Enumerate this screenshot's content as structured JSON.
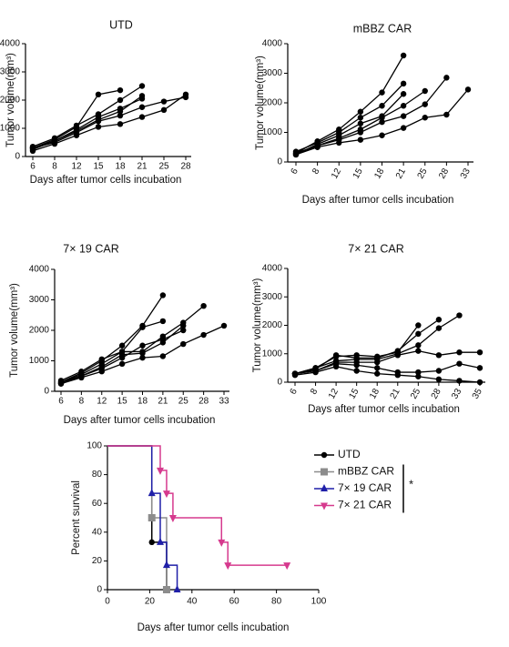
{
  "chart_data": [
    {
      "type": "line",
      "title": "UTD",
      "xlabel": "Days after tumor cells incubation",
      "ylabel": "Tumor volume(mm³)",
      "categories": [
        "6",
        "8",
        "12",
        "15",
        "18",
        "21",
        "25",
        "28"
      ],
      "ylim": [
        0,
        4000
      ],
      "yticks": [
        0,
        1000,
        2000,
        3000,
        4000
      ],
      "color": "#000000",
      "series": [
        {
          "values": [
            300,
            600,
            1050,
            2200,
            2350,
            null,
            null,
            null
          ]
        },
        {
          "values": [
            350,
            650,
            1100,
            1500,
            2000,
            2500,
            null,
            null
          ]
        },
        {
          "values": [
            250,
            550,
            900,
            1300,
            1600,
            2150,
            null,
            null
          ]
        },
        {
          "values": [
            300,
            500,
            850,
            1250,
            1450,
            1750,
            1950,
            2100
          ]
        },
        {
          "values": [
            200,
            450,
            750,
            1050,
            1150,
            1400,
            1650,
            2200
          ]
        },
        {
          "values": [
            300,
            550,
            950,
            1400,
            1700,
            2050,
            null,
            null
          ]
        }
      ]
    },
    {
      "type": "line",
      "title": "mBBZ CAR",
      "xlabel": "Days after tumor cells incubation",
      "ylabel": "Tumor volume(mm³)",
      "categories": [
        "6",
        "8",
        "12",
        "15",
        "18",
        "21",
        "25",
        "28",
        "33"
      ],
      "ylim": [
        0,
        4000
      ],
      "yticks": [
        0,
        1000,
        2000,
        3000,
        4000
      ],
      "color": "#000000",
      "series": [
        {
          "values": [
            300,
            700,
            1100,
            1700,
            2350,
            3600,
            null,
            null,
            null
          ]
        },
        {
          "values": [
            350,
            650,
            1000,
            1500,
            1900,
            2650,
            null,
            null,
            null
          ]
        },
        {
          "values": [
            250,
            600,
            900,
            1300,
            1550,
            2300,
            null,
            null,
            null
          ]
        },
        {
          "values": [
            300,
            550,
            800,
            1100,
            1500,
            1900,
            2400,
            null,
            null
          ]
        },
        {
          "values": [
            250,
            550,
            750,
            1000,
            1350,
            1550,
            1950,
            2850,
            null
          ]
        },
        {
          "values": [
            250,
            500,
            650,
            750,
            900,
            1150,
            1500,
            1600,
            2450
          ]
        }
      ]
    },
    {
      "type": "line",
      "title": "7× 19 CAR",
      "xlabel": "Days after tumor cells incubation",
      "ylabel": "Tumor volume(mm³)",
      "categories": [
        "6",
        "8",
        "12",
        "15",
        "18",
        "21",
        "25",
        "28",
        "33"
      ],
      "ylim": [
        0,
        4000
      ],
      "yticks": [
        0,
        1000,
        2000,
        3000,
        4000
      ],
      "color": "#000000",
      "series": [
        {
          "values": [
            300,
            600,
            1000,
            1500,
            2150,
            3150,
            null,
            null,
            null
          ]
        },
        {
          "values": [
            350,
            650,
            1050,
            1300,
            2100,
            2300,
            null,
            null,
            null
          ]
        },
        {
          "values": [
            300,
            550,
            900,
            1300,
            1300,
            1800,
            2250,
            2800,
            null
          ]
        },
        {
          "values": [
            250,
            500,
            800,
            1200,
            1250,
            1600,
            2150,
            null,
            null
          ]
        },
        {
          "values": [
            300,
            500,
            750,
            1100,
            1500,
            1700,
            2000,
            null,
            null
          ]
        },
        {
          "values": [
            250,
            450,
            650,
            900,
            1100,
            1150,
            1550,
            1850,
            2150
          ]
        }
      ]
    },
    {
      "type": "line",
      "title": "7× 21 CAR",
      "xlabel": "Days after tumor cells incubation",
      "ylabel": "Tumor volume(mm³)",
      "categories": [
        "6",
        "8",
        "12",
        "15",
        "18",
        "21",
        "25",
        "28",
        "33",
        "35"
      ],
      "ylim": [
        0,
        4000
      ],
      "yticks": [
        0,
        1000,
        2000,
        3000,
        4000
      ],
      "color": "#000000",
      "series": [
        {
          "values": [
            300,
            500,
            900,
            950,
            900,
            1050,
            2000,
            null,
            null,
            null
          ]
        },
        {
          "values": [
            300,
            450,
            950,
            850,
            850,
            1100,
            1700,
            2200,
            null,
            null
          ]
        },
        {
          "values": [
            300,
            500,
            750,
            800,
            800,
            1000,
            1300,
            1900,
            2350,
            null
          ]
        },
        {
          "values": [
            300,
            400,
            700,
            700,
            700,
            950,
            1100,
            950,
            1050,
            1050
          ]
        },
        {
          "values": [
            300,
            400,
            650,
            600,
            500,
            350,
            350,
            400,
            650,
            500
          ]
        },
        {
          "values": [
            250,
            350,
            550,
            400,
            300,
            250,
            200,
            100,
            50,
            0
          ]
        }
      ]
    },
    {
      "type": "step",
      "xlabel": "Days after tumor cells incubation",
      "ylabel": "Percent survival",
      "xlim": [
        0,
        100
      ],
      "xticks": [
        0,
        20,
        40,
        60,
        80,
        100
      ],
      "ylim": [
        0,
        100
      ],
      "yticks": [
        0,
        20,
        40,
        60,
        80,
        100
      ],
      "annotation": "*",
      "series": [
        {
          "name": "UTD",
          "color": "#000000",
          "marker": "circle",
          "x": [
            0,
            21,
            28
          ],
          "values": [
            100,
            33,
            0
          ]
        },
        {
          "name": "mBBZ CAR",
          "color": "#8c8c8c",
          "marker": "square",
          "x": [
            0,
            21,
            28
          ],
          "values": [
            100,
            50,
            0
          ]
        },
        {
          "name": "7× 19 CAR",
          "color": "#1f1fa8",
          "marker": "triangle-up",
          "x": [
            0,
            21,
            25,
            28,
            33
          ],
          "values": [
            100,
            67,
            33,
            17,
            0
          ]
        },
        {
          "name": "7× 21 CAR",
          "color": "#d63a8e",
          "marker": "triangle-down",
          "x": [
            0,
            25,
            28,
            31,
            54,
            57,
            85
          ],
          "values": [
            100,
            83,
            67,
            50,
            33,
            17,
            17
          ]
        }
      ]
    }
  ]
}
